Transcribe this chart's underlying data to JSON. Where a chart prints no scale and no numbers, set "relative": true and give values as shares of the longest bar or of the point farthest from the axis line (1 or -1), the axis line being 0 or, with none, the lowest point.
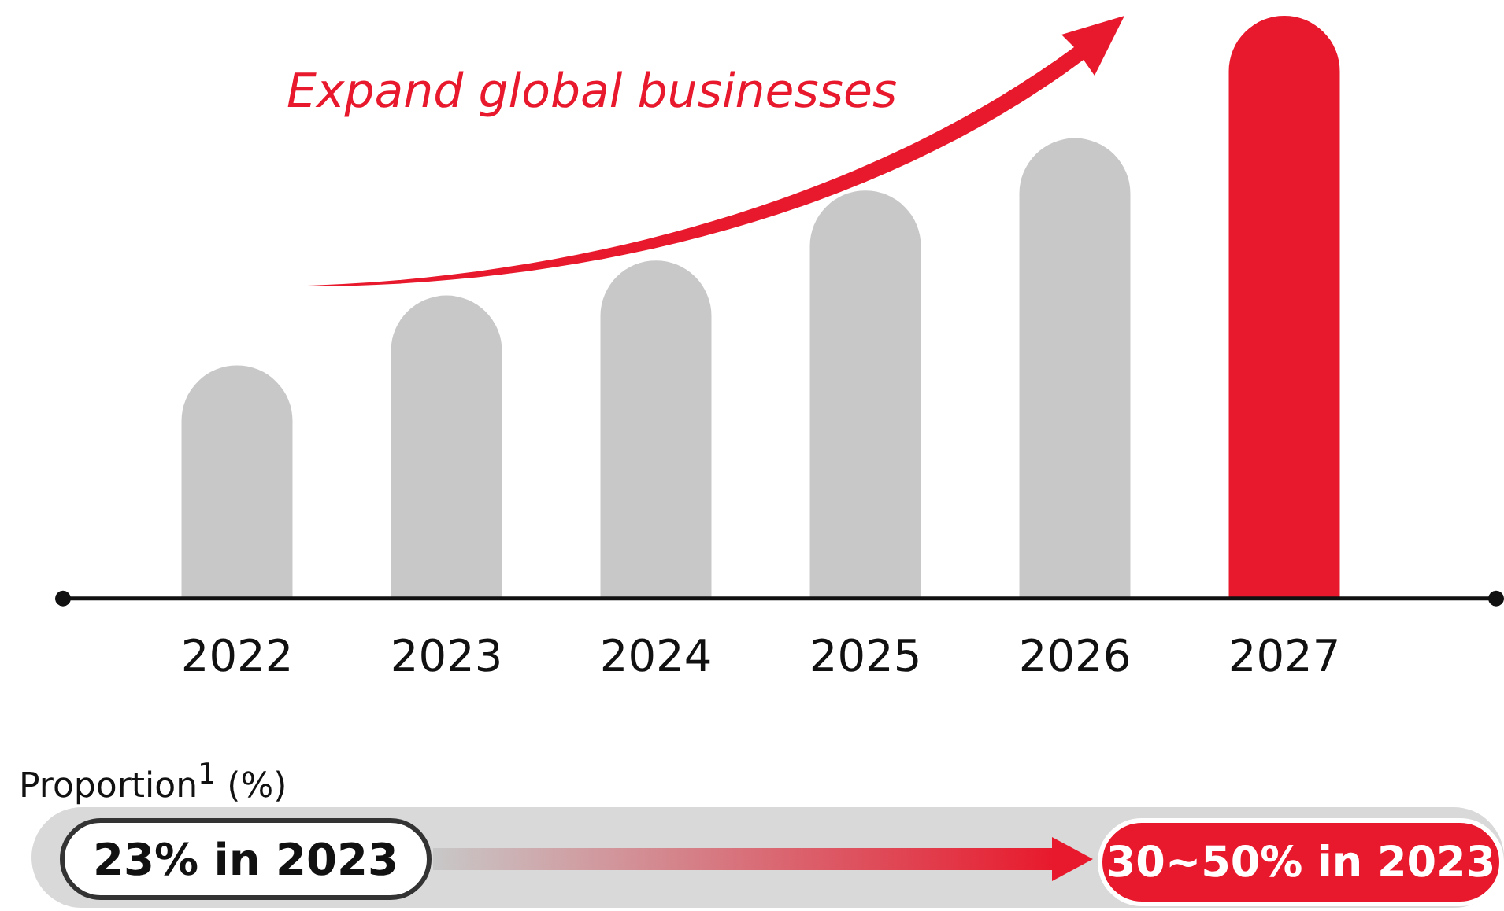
{
  "chart_data": {
    "type": "bar",
    "relative": true,
    "categories": [
      "2022",
      "2023",
      "2024",
      "2025",
      "2026",
      "2027"
    ],
    "values": [
      0.4,
      0.52,
      0.58,
      0.7,
      0.79,
      1
    ],
    "colors": [
      "#c8c8c8",
      "#c8c8c8",
      "#c8c8c8",
      "#c8c8c8",
      "#c8c8c8",
      "#e8192c"
    ],
    "annotations": [
      "Expand global businesses",
      "Proportion$^{1}$ (%)",
      "23% in 2023",
      "30~50% in 2023"
    ],
    "grid": false,
    "legend": false
  }
}
